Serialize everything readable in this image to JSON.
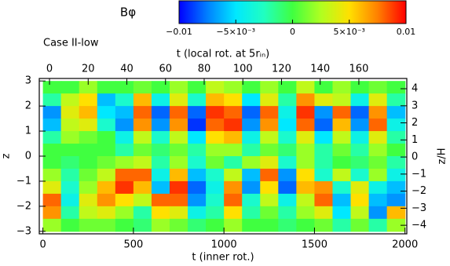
{
  "chart_data": {
    "type": "heatmap",
    "title": "Case II-low",
    "colorbar_label": "Bφ",
    "xlabel": "t (inner rot.)",
    "x2label": "t (local rot. at 5rᵢₙ)",
    "ylabel": "z",
    "y2label": "z/H",
    "xlim": [
      -20,
      2010
    ],
    "xticks": [
      0,
      500,
      1000,
      1500,
      2000
    ],
    "x2lim": [
      -5.3,
      184.8
    ],
    "x2ticks": [
      0,
      20,
      40,
      60,
      80,
      100,
      120,
      140,
      160
    ],
    "ylim": [
      -3.1,
      3.1
    ],
    "yticks": [
      {
        "value": -3,
        "label": "−3"
      },
      {
        "value": -2,
        "label": "−2"
      },
      {
        "value": -1,
        "label": "−1"
      },
      0,
      1,
      2,
      3
    ],
    "y2lim": [
      -4.5,
      4.6
    ],
    "y2ticks": [
      {
        "value": -4,
        "label": "−4"
      },
      {
        "value": -3,
        "label": "−3"
      },
      {
        "value": -2,
        "label": "−2"
      },
      {
        "value": -1,
        "label": "−1"
      },
      0,
      1,
      2,
      3,
      4
    ],
    "zlim": [
      -0.01,
      0.01
    ],
    "zticks": [
      {
        "value": -0.01,
        "label": "−0.01"
      },
      {
        "value": -0.005,
        "label": "−5×10⁻³"
      },
      0,
      {
        "value": 0.005,
        "label": "5×10⁻³"
      },
      0.01
    ],
    "colormap": [
      "#0000ff",
      "#0080ff",
      "#00e8ff",
      "#20ffc0",
      "#40ff40",
      "#b0ff20",
      "#ffe000",
      "#ff8000",
      "#ff0000"
    ],
    "x": [
      50,
      150,
      250,
      350,
      450,
      550,
      650,
      750,
      850,
      950,
      1050,
      1150,
      1250,
      1350,
      1450,
      1550,
      1650,
      1750,
      1850,
      1950
    ],
    "y": [
      2.75,
      2.25,
      1.75,
      1.25,
      0.75,
      0.25,
      -0.25,
      -0.75,
      -1.25,
      -1.75,
      -2.25,
      -2.75
    ],
    "values": [
      [
        0,
        0,
        0.002,
        0,
        0,
        0.001,
        0,
        0.002,
        0,
        0.003,
        0.002,
        0,
        0.002,
        0,
        0.003,
        0,
        0.002,
        0,
        0.001,
        0
      ],
      [
        -0.002,
        0.003,
        0.005,
        -0.006,
        -0.003,
        0.006,
        -0.004,
        0.004,
        -0.003,
        0.006,
        0.005,
        -0.005,
        0.004,
        -0.002,
        0.007,
        0.004,
        0.003,
        -0.004,
        0.004,
        -0.002
      ],
      [
        -0.007,
        0.004,
        0.006,
        -0.005,
        -0.006,
        0.008,
        -0.008,
        0.008,
        -0.008,
        0.009,
        0.008,
        -0.008,
        0.008,
        -0.004,
        0.009,
        -0.007,
        0.008,
        -0.008,
        0.007,
        -0.006
      ],
      [
        -0.006,
        0.003,
        0.004,
        -0.003,
        -0.007,
        0.007,
        -0.007,
        0.007,
        -0.009,
        0.008,
        0.009,
        -0.007,
        0.007,
        -0.005,
        0.008,
        -0.008,
        0.006,
        -0.007,
        0.008,
        -0.004
      ],
      [
        -0.002,
        0.002,
        0.001,
        0,
        -0.004,
        0.003,
        -0.003,
        0.003,
        -0.005,
        0.005,
        0.006,
        -0.004,
        0.003,
        -0.003,
        0.004,
        -0.005,
        0.003,
        -0.004,
        0.004,
        -0.002
      ],
      [
        0,
        0,
        0,
        0,
        -0.002,
        0.001,
        -0.001,
        0.001,
        -0.002,
        0.002,
        0.002,
        -0.002,
        0.001,
        -0.001,
        0.002,
        -0.002,
        0.001,
        -0.002,
        0.002,
        0
      ],
      [
        0,
        -0.001,
        0,
        0.001,
        0.002,
        0.003,
        -0.002,
        0.002,
        -0.003,
        0.001,
        -0.002,
        0.002,
        0.004,
        -0.003,
        0.002,
        -0.002,
        0,
        -0.001,
        0.001,
        -0.002
      ],
      [
        0.002,
        -0.002,
        0.001,
        0.003,
        0.008,
        0.008,
        -0.004,
        0.006,
        -0.006,
        -0.003,
        0.003,
        -0.006,
        0.008,
        -0.007,
        0.005,
        -0.003,
        0.003,
        -0.003,
        0.002,
        -0.004
      ],
      [
        0.004,
        -0.003,
        0.002,
        0.006,
        0.009,
        0.006,
        -0.006,
        0.009,
        -0.008,
        -0.004,
        0.007,
        -0.007,
        0.005,
        -0.008,
        0.006,
        0.007,
        -0.003,
        0.004,
        -0.004,
        -0.006
      ],
      [
        0.008,
        -0.004,
        0.004,
        0.007,
        0.005,
        0.003,
        0.008,
        0.008,
        -0.007,
        -0.003,
        0.008,
        -0.003,
        0.003,
        -0.004,
        0.003,
        0.008,
        -0.006,
        0.005,
        -0.006,
        -0.007
      ],
      [
        0.007,
        -0.002,
        0.003,
        0.004,
        0.002,
        -0.002,
        0.005,
        0.004,
        -0.004,
        -0.002,
        0.005,
        -0.002,
        0.001,
        -0.002,
        0.002,
        0.004,
        -0.005,
        0.003,
        -0.007,
        0.006
      ],
      [
        0.002,
        0,
        0.001,
        0.001,
        0,
        -0.001,
        0.002,
        0.001,
        -0.001,
        0,
        0.002,
        0,
        0,
        -0.001,
        0,
        0.001,
        -0.002,
        0.001,
        -0.002,
        0.002
      ]
    ]
  }
}
